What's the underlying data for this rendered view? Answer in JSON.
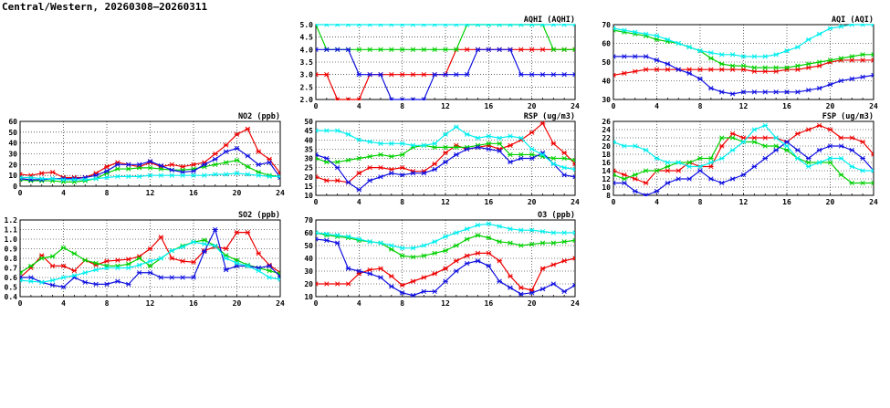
{
  "page_title": "Central/Western, 20260308–20260311",
  "colors": {
    "s1": "#ee0000",
    "s2": "#00d000",
    "s3": "#1010e0",
    "s4": "#00eeee"
  },
  "chart_data": [
    {
      "id": "aqhi",
      "type": "line",
      "title": "AQHI (AQHI)",
      "ylim": [
        2,
        5
      ],
      "yticks": [
        2.0,
        2.5,
        3.0,
        3.5,
        4.0,
        4.5,
        5.0
      ],
      "ydecimals": 1,
      "xlim": [
        0,
        24
      ],
      "xticks": [
        0,
        4,
        8,
        12,
        16,
        20,
        24
      ],
      "series": [
        {
          "color": "s1",
          "values": [
            3,
            3,
            2,
            2,
            2,
            3,
            3,
            3,
            3,
            3,
            3,
            3,
            3,
            4,
            4,
            4,
            4,
            4,
            4,
            4,
            4,
            4,
            4,
            4,
            4
          ]
        },
        {
          "color": "s2",
          "values": [
            5,
            4,
            4,
            4,
            4,
            4,
            4,
            4,
            4,
            4,
            4,
            4,
            4,
            4,
            5,
            5,
            5,
            5,
            5,
            5,
            5,
            5,
            4,
            4,
            4
          ]
        },
        {
          "color": "s3",
          "values": [
            4,
            4,
            4,
            4,
            3,
            3,
            3,
            2,
            2,
            2,
            2,
            3,
            3,
            3,
            3,
            4,
            4,
            4,
            4,
            3,
            3,
            3,
            3,
            3,
            3
          ]
        },
        {
          "color": "s4",
          "values": [
            5,
            5,
            5,
            5,
            5,
            5,
            5,
            5,
            5,
            5,
            5,
            5,
            5,
            5,
            5,
            5,
            5,
            5,
            5,
            5,
            5,
            5,
            5,
            5,
            5
          ]
        }
      ]
    },
    {
      "id": "aqi",
      "type": "line",
      "title": "AQI (AQI)",
      "ylim": [
        30,
        70
      ],
      "yticks": [
        30,
        40,
        50,
        60,
        70
      ],
      "ydecimals": 0,
      "xlim": [
        0,
        24
      ],
      "xticks": [
        0,
        4,
        8,
        12,
        16,
        20,
        24
      ],
      "series": [
        {
          "color": "s1",
          "values": [
            43,
            44,
            45,
            46,
            46,
            46,
            46,
            46,
            46,
            46,
            46,
            46,
            46,
            45,
            45,
            45,
            46,
            46,
            47,
            48,
            50,
            51,
            51,
            51,
            51
          ]
        },
        {
          "color": "s2",
          "values": [
            67,
            66,
            65,
            64,
            62,
            61,
            60,
            58,
            56,
            52,
            49,
            48,
            48,
            47,
            47,
            47,
            47,
            48,
            49,
            50,
            51,
            52,
            53,
            54,
            54
          ]
        },
        {
          "color": "s3",
          "values": [
            53,
            53,
            53,
            53,
            51,
            49,
            46,
            44,
            41,
            36,
            34,
            33,
            34,
            34,
            34,
            34,
            34,
            34,
            35,
            36,
            38,
            40,
            41,
            42,
            43
          ]
        },
        {
          "color": "s4",
          "values": [
            68,
            67,
            66,
            65,
            64,
            62,
            60,
            58,
            56,
            55,
            54,
            54,
            53,
            53,
            53,
            54,
            56,
            58,
            62,
            65,
            68,
            69,
            70,
            70,
            70
          ]
        }
      ]
    },
    {
      "id": "no2",
      "type": "line",
      "title": "NO2 (ppb)",
      "ylim": [
        0,
        60
      ],
      "yticks": [
        0,
        10,
        20,
        30,
        40,
        50,
        60
      ],
      "ydecimals": 0,
      "xlim": [
        0,
        24
      ],
      "xticks": [
        0,
        4,
        8,
        12,
        16,
        20,
        24
      ],
      "series": [
        {
          "color": "s1",
          "values": [
            11,
            10,
            12,
            13,
            8,
            8,
            8,
            12,
            18,
            22,
            20,
            18,
            22,
            18,
            20,
            18,
            20,
            22,
            30,
            38,
            48,
            53,
            32,
            25,
            12
          ]
        },
        {
          "color": "s2",
          "values": [
            6,
            5,
            5,
            5,
            4,
            4,
            5,
            7,
            12,
            16,
            16,
            17,
            17,
            16,
            15,
            15,
            16,
            18,
            20,
            22,
            24,
            18,
            13,
            10,
            9
          ]
        },
        {
          "color": "s3",
          "values": [
            7,
            6,
            6,
            7,
            7,
            7,
            8,
            10,
            14,
            20,
            20,
            20,
            23,
            19,
            15,
            13,
            14,
            20,
            25,
            32,
            35,
            28,
            20,
            22,
            8
          ]
        },
        {
          "color": "s4",
          "values": [
            8,
            8,
            7,
            7,
            6,
            6,
            6,
            7,
            8,
            9,
            9,
            9,
            10,
            10,
            10,
            10,
            10,
            10,
            11,
            11,
            12,
            11,
            10,
            9,
            9
          ]
        }
      ]
    },
    {
      "id": "rsp",
      "type": "line",
      "title": "RSP (ug/m3)",
      "ylim": [
        10,
        50
      ],
      "yticks": [
        10,
        15,
        20,
        25,
        30,
        35,
        40,
        45,
        50
      ],
      "ydecimals": 0,
      "xlim": [
        0,
        24
      ],
      "xticks": [
        0,
        4,
        8,
        12,
        16,
        20,
        24
      ],
      "series": [
        {
          "color": "s1",
          "values": [
            20,
            18,
            18,
            17,
            22,
            25,
            25,
            24,
            25,
            23,
            23,
            27,
            33,
            37,
            35,
            36,
            37,
            35,
            37,
            40,
            44,
            49,
            38,
            33,
            27
          ]
        },
        {
          "color": "s2",
          "values": [
            30,
            28,
            28,
            29,
            30,
            31,
            32,
            31,
            32,
            36,
            37,
            36,
            36,
            36,
            36,
            37,
            38,
            38,
            32,
            32,
            32,
            31,
            30,
            30,
            29
          ]
        },
        {
          "color": "s3",
          "values": [
            32,
            30,
            25,
            17,
            13,
            18,
            20,
            22,
            21,
            22,
            22,
            24,
            28,
            32,
            35,
            36,
            35,
            34,
            28,
            30,
            30,
            33,
            27,
            21,
            20
          ]
        },
        {
          "color": "s4",
          "values": [
            45,
            45,
            45,
            43,
            40,
            39,
            38,
            38,
            38,
            37,
            37,
            38,
            43,
            47,
            43,
            41,
            42,
            41,
            42,
            41,
            35,
            32,
            27,
            25,
            24
          ]
        }
      ]
    },
    {
      "id": "fsp",
      "type": "line",
      "title": "FSP (ug/m3)",
      "ylim": [
        8,
        26
      ],
      "yticks": [
        8,
        10,
        12,
        14,
        16,
        18,
        20,
        22,
        24,
        26
      ],
      "ydecimals": 0,
      "xlim": [
        0,
        24
      ],
      "xticks": [
        0,
        4,
        8,
        12,
        16,
        20,
        24
      ],
      "series": [
        {
          "color": "s1",
          "values": [
            14,
            13,
            12,
            11,
            14,
            14,
            14,
            16,
            15,
            15,
            20,
            23,
            22,
            22,
            22,
            22,
            21,
            23,
            24,
            25,
            24,
            22,
            22,
            21,
            18
          ]
        },
        {
          "color": "s2",
          "values": [
            13,
            12,
            13,
            14,
            14,
            15,
            16,
            16,
            17,
            17,
            22,
            22,
            21,
            21,
            20,
            20,
            19,
            17,
            16,
            16,
            16,
            13,
            11,
            11,
            11
          ]
        },
        {
          "color": "s3",
          "values": [
            11,
            11,
            9,
            8,
            9,
            11,
            12,
            12,
            14,
            12,
            11,
            12,
            13,
            15,
            17,
            19,
            21,
            19,
            17,
            19,
            20,
            20,
            19,
            17,
            14
          ]
        },
        {
          "color": "s4",
          "values": [
            21,
            20,
            20,
            19,
            17,
            16,
            16,
            15,
            15,
            16,
            17,
            19,
            21,
            24,
            25,
            22,
            20,
            17,
            15,
            16,
            17,
            17,
            15,
            14,
            14
          ]
        }
      ]
    },
    {
      "id": "so2",
      "type": "line",
      "title": "SO2 (ppb)",
      "ylim": [
        0.4,
        1.2
      ],
      "yticks": [
        0.4,
        0.5,
        0.6,
        0.7,
        0.8,
        0.9,
        1.0,
        1.1,
        1.2
      ],
      "ydecimals": 1,
      "xlim": [
        0,
        24
      ],
      "xticks": [
        0,
        4,
        8,
        12,
        16,
        20,
        24
      ],
      "series": [
        {
          "color": "s1",
          "values": [
            0.6,
            0.7,
            0.83,
            0.72,
            0.72,
            0.67,
            0.78,
            0.73,
            0.77,
            0.78,
            0.79,
            0.82,
            0.9,
            1.02,
            0.8,
            0.77,
            0.76,
            0.88,
            0.92,
            0.9,
            1.07,
            1.07,
            0.85,
            0.73,
            0.65
          ]
        },
        {
          "color": "s2",
          "values": [
            0.65,
            0.72,
            0.8,
            0.82,
            0.91,
            0.85,
            0.78,
            0.75,
            0.72,
            0.72,
            0.74,
            0.8,
            0.72,
            0.8,
            0.88,
            0.93,
            0.97,
            0.99,
            0.93,
            0.83,
            0.78,
            0.73,
            0.7,
            0.67,
            0.64
          ]
        },
        {
          "color": "s3",
          "values": [
            0.6,
            0.6,
            0.55,
            0.52,
            0.5,
            0.6,
            0.55,
            0.53,
            0.53,
            0.56,
            0.53,
            0.65,
            0.65,
            0.6,
            0.6,
            0.6,
            0.6,
            0.87,
            1.1,
            0.68,
            0.72,
            0.72,
            0.7,
            0.72,
            0.61
          ]
        },
        {
          "color": "s4",
          "values": [
            0.57,
            0.56,
            0.55,
            0.57,
            0.6,
            0.62,
            0.65,
            0.68,
            0.7,
            0.7,
            0.7,
            0.73,
            0.77,
            0.8,
            0.88,
            0.92,
            0.97,
            0.95,
            0.93,
            0.8,
            0.75,
            0.72,
            0.67,
            0.6,
            0.58
          ]
        }
      ]
    },
    {
      "id": "o3",
      "type": "line",
      "title": "O3 (ppb)",
      "ylim": [
        10,
        70
      ],
      "yticks": [
        10,
        20,
        30,
        40,
        50,
        60,
        70
      ],
      "ydecimals": 0,
      "xlim": [
        0,
        24
      ],
      "xticks": [
        0,
        4,
        8,
        12,
        16,
        20,
        24
      ],
      "series": [
        {
          "color": "s1",
          "values": [
            20,
            20,
            20,
            20,
            28,
            31,
            32,
            26,
            19,
            22,
            25,
            28,
            32,
            38,
            42,
            44,
            44,
            38,
            26,
            17,
            15,
            32,
            35,
            38,
            40
          ]
        },
        {
          "color": "s2",
          "values": [
            60,
            58,
            57,
            56,
            54,
            53,
            52,
            47,
            42,
            41,
            42,
            44,
            46,
            50,
            55,
            58,
            56,
            53,
            52,
            50,
            51,
            52,
            52,
            53,
            54
          ]
        },
        {
          "color": "s3",
          "values": [
            55,
            54,
            52,
            32,
            30,
            28,
            25,
            18,
            13,
            11,
            14,
            14,
            22,
            30,
            36,
            38,
            34,
            22,
            17,
            12,
            13,
            16,
            20,
            14,
            19
          ]
        },
        {
          "color": "s4",
          "values": [
            60,
            59,
            58,
            57,
            55,
            53,
            52,
            50,
            48,
            48,
            50,
            53,
            57,
            60,
            63,
            66,
            67,
            65,
            63,
            62,
            62,
            61,
            60,
            60,
            60
          ]
        }
      ]
    }
  ]
}
